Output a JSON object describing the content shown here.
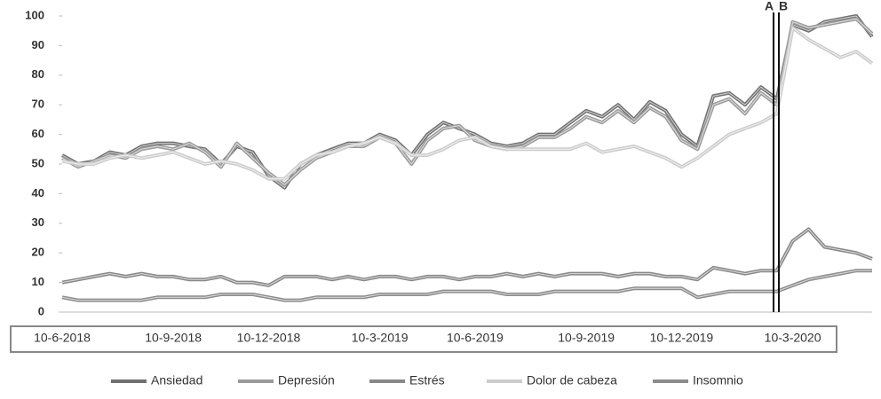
{
  "chart_data": {
    "type": "line",
    "categories": [
      "10-6-2018",
      null,
      null,
      null,
      null,
      null,
      null,
      "10-9-2018",
      null,
      null,
      null,
      null,
      null,
      "10-12-2018",
      null,
      null,
      null,
      null,
      null,
      null,
      "10-3-2019",
      null,
      null,
      null,
      null,
      null,
      "10-6-2019",
      null,
      null,
      null,
      null,
      null,
      null,
      "10-9-2019",
      null,
      null,
      null,
      null,
      null,
      "10-12-2019",
      null,
      null,
      null,
      null,
      null,
      null,
      "10-3-2020",
      null,
      null,
      null,
      null,
      null
    ],
    "series": [
      {
        "name": "Ansiedad",
        "color": "#707070",
        "values": [
          53,
          50,
          51,
          54,
          53,
          56,
          57,
          57,
          56,
          55,
          50,
          56,
          54,
          46,
          42,
          50,
          53,
          55,
          57,
          57,
          60,
          58,
          53,
          60,
          64,
          62,
          60,
          57,
          56,
          57,
          60,
          60,
          64,
          68,
          66,
          70,
          65,
          71,
          68,
          60,
          56,
          73,
          74,
          70,
          76,
          72,
          97,
          95,
          98,
          99,
          100,
          93
        ]
      },
      {
        "name": "Depresión",
        "color": "#9a9a9a",
        "values": [
          52,
          49,
          51,
          53,
          52,
          55,
          56,
          55,
          57,
          54,
          49,
          57,
          52,
          47,
          43,
          48,
          52,
          54,
          56,
          56,
          59,
          57,
          50,
          58,
          62,
          63,
          58,
          56,
          55,
          56,
          59,
          59,
          62,
          66,
          64,
          68,
          64,
          69,
          66,
          58,
          55,
          70,
          72,
          67,
          74,
          70,
          98,
          96,
          97,
          98,
          99,
          94
        ]
      },
      {
        "name": "Estrés",
        "color": "#888888",
        "values": [
          10,
          11,
          12,
          13,
          12,
          13,
          12,
          12,
          11,
          11,
          12,
          10,
          10,
          9,
          12,
          12,
          12,
          11,
          12,
          11,
          12,
          12,
          11,
          12,
          12,
          11,
          12,
          12,
          13,
          12,
          13,
          12,
          13,
          13,
          13,
          12,
          13,
          13,
          12,
          12,
          11,
          15,
          14,
          13,
          14,
          14,
          24,
          28,
          22,
          21,
          20,
          18
        ]
      },
      {
        "name": "Dolor de cabeza",
        "color": "#cccccc",
        "values": [
          51,
          50,
          50,
          52,
          53,
          52,
          53,
          54,
          52,
          50,
          51,
          50,
          48,
          45,
          45,
          50,
          53,
          54,
          56,
          57,
          59,
          57,
          53,
          53,
          55,
          58,
          59,
          56,
          55,
          55,
          55,
          55,
          55,
          57,
          54,
          55,
          56,
          54,
          52,
          49,
          52,
          56,
          60,
          62,
          64,
          67,
          96,
          92,
          89,
          86,
          88,
          84
        ]
      },
      {
        "name": "Insomnio",
        "color": "#8c8c8c",
        "values": [
          5,
          4,
          4,
          4,
          4,
          4,
          5,
          5,
          5,
          5,
          6,
          6,
          6,
          5,
          4,
          4,
          5,
          5,
          5,
          5,
          6,
          6,
          6,
          6,
          7,
          7,
          7,
          7,
          6,
          6,
          6,
          7,
          7,
          7,
          7,
          7,
          8,
          8,
          8,
          8,
          5,
          6,
          7,
          7,
          7,
          7,
          9,
          11,
          12,
          13,
          14,
          14
        ]
      }
    ],
    "annotations": [
      "A",
      "B"
    ],
    "ylim": [
      0,
      100
    ],
    "yticks": [
      0,
      10,
      20,
      30,
      40,
      50,
      60,
      70,
      80,
      90,
      100
    ],
    "grid": false
  }
}
